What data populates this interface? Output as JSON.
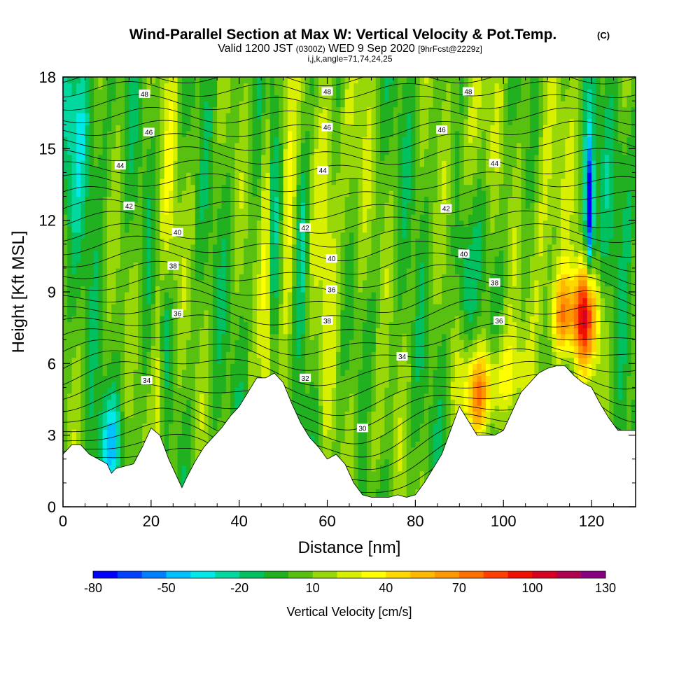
{
  "chart_data": {
    "type": "heatmap",
    "title": "Wind-Parallel Section at Max W: Vertical Velocity & Pot.Temp.",
    "title_mark": "(C)",
    "subtitle_parts": [
      "Valid 1200 JST",
      "(0300Z)",
      "WED 9 Sep 2020",
      "[9hrFcst@2229z]"
    ],
    "subtitle2": "i,j,k,angle=71,74,24,25",
    "xlabel": "Distance [nm]",
    "ylabel": "Height [Kft MSL]",
    "xlim": [
      0,
      130
    ],
    "ylim": [
      0,
      18
    ],
    "xticks": [
      0,
      20,
      40,
      60,
      80,
      100,
      120
    ],
    "yticks": [
      0,
      3,
      6,
      9,
      12,
      15,
      18
    ],
    "colorbar": {
      "label": "Vertical Velocity [cm/s]",
      "min": -80,
      "max": 130,
      "tick_labels": [
        -80,
        -50,
        -20,
        10,
        40,
        70,
        100,
        130
      ],
      "colors": [
        "#0000ff",
        "#0040ff",
        "#0080ff",
        "#00c0ff",
        "#00e8e8",
        "#00d8a0",
        "#00c060",
        "#20b020",
        "#58c010",
        "#98d808",
        "#d8f000",
        "#ffff00",
        "#ffd800",
        "#ffb800",
        "#ff9800",
        "#ff7000",
        "#ff4000",
        "#f01000",
        "#d80020",
        "#b00050",
        "#880080"
      ]
    },
    "terrain": [
      [
        0,
        2.2
      ],
      [
        2,
        2.6
      ],
      [
        4,
        2.6
      ],
      [
        6,
        2.2
      ],
      [
        8,
        2.0
      ],
      [
        10,
        1.8
      ],
      [
        11,
        1.4
      ],
      [
        12,
        1.6
      ],
      [
        14,
        1.7
      ],
      [
        16,
        1.8
      ],
      [
        18,
        2.5
      ],
      [
        20,
        3.3
      ],
      [
        22,
        3.0
      ],
      [
        24,
        2.0
      ],
      [
        26,
        1.2
      ],
      [
        27,
        0.8
      ],
      [
        28,
        1.2
      ],
      [
        30,
        1.9
      ],
      [
        32,
        2.5
      ],
      [
        34,
        2.9
      ],
      [
        36,
        3.3
      ],
      [
        38,
        3.8
      ],
      [
        40,
        4.2
      ],
      [
        42,
        4.8
      ],
      [
        44,
        5.4
      ],
      [
        46,
        5.4
      ],
      [
        48,
        5.6
      ],
      [
        50,
        5.2
      ],
      [
        52,
        4.3
      ],
      [
        54,
        3.5
      ],
      [
        56,
        2.9
      ],
      [
        58,
        2.5
      ],
      [
        60,
        2.0
      ],
      [
        62,
        2.2
      ],
      [
        64,
        1.8
      ],
      [
        66,
        1.0
      ],
      [
        68,
        0.5
      ],
      [
        70,
        0.4
      ],
      [
        72,
        0.4
      ],
      [
        74,
        0.4
      ],
      [
        76,
        0.5
      ],
      [
        78,
        0.4
      ],
      [
        80,
        0.5
      ],
      [
        82,
        1.0
      ],
      [
        84,
        1.6
      ],
      [
        86,
        2.2
      ],
      [
        88,
        3.2
      ],
      [
        90,
        4.2
      ],
      [
        92,
        3.6
      ],
      [
        94,
        3.0
      ],
      [
        96,
        3.0
      ],
      [
        98,
        3.0
      ],
      [
        100,
        3.2
      ],
      [
        102,
        4.0
      ],
      [
        104,
        4.8
      ],
      [
        106,
        5.2
      ],
      [
        108,
        5.6
      ],
      [
        110,
        5.8
      ],
      [
        112,
        5.9
      ],
      [
        114,
        5.9
      ],
      [
        116,
        5.5
      ],
      [
        118,
        5.2
      ],
      [
        120,
        5.0
      ],
      [
        122,
        4.3
      ],
      [
        124,
        3.7
      ],
      [
        126,
        3.2
      ],
      [
        128,
        3.2
      ],
      [
        130,
        3.2
      ]
    ],
    "isentrope_labels": [
      {
        "x": 18.5,
        "y": 17.3,
        "text": "48"
      },
      {
        "x": 19.5,
        "y": 15.7,
        "text": "46"
      },
      {
        "x": 13,
        "y": 14.3,
        "text": "44"
      },
      {
        "x": 15,
        "y": 12.6,
        "text": "42"
      },
      {
        "x": 26,
        "y": 11.5,
        "text": "40"
      },
      {
        "x": 25,
        "y": 10.1,
        "text": "38"
      },
      {
        "x": 26,
        "y": 8.1,
        "text": "36"
      },
      {
        "x": 19,
        "y": 5.3,
        "text": "34"
      },
      {
        "x": 60,
        "y": 17.4,
        "text": "48"
      },
      {
        "x": 60,
        "y": 15.9,
        "text": "46"
      },
      {
        "x": 59,
        "y": 14.1,
        "text": "44"
      },
      {
        "x": 55,
        "y": 11.7,
        "text": "42"
      },
      {
        "x": 61,
        "y": 10.4,
        "text": "40"
      },
      {
        "x": 61,
        "y": 9.1,
        "text": "36"
      },
      {
        "x": 60,
        "y": 7.8,
        "text": "38"
      },
      {
        "x": 55,
        "y": 5.4,
        "text": "32"
      },
      {
        "x": 77,
        "y": 6.3,
        "text": "34"
      },
      {
        "x": 68,
        "y": 3.3,
        "text": "30"
      },
      {
        "x": 92,
        "y": 17.4,
        "text": "48"
      },
      {
        "x": 86,
        "y": 15.8,
        "text": "46"
      },
      {
        "x": 98,
        "y": 14.4,
        "text": "44"
      },
      {
        "x": 87,
        "y": 12.5,
        "text": "42"
      },
      {
        "x": 91,
        "y": 10.6,
        "text": "40"
      },
      {
        "x": 98,
        "y": 9.4,
        "text": "38"
      },
      {
        "x": 99,
        "y": 7.8,
        "text": "36"
      }
    ]
  }
}
